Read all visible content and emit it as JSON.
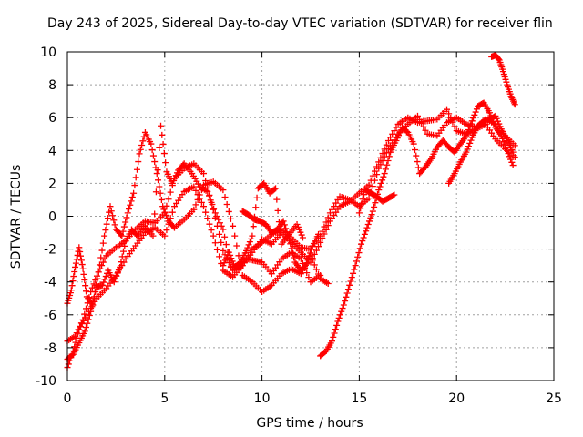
{
  "chart_data": {
    "type": "scatter",
    "title": "Day 243 of 2025, Sidereal Day-to-day VTEC variation (SDTVAR) for receiver flin",
    "xlabel": "GPS time / hours",
    "ylabel": "SDTVAR / TECUs",
    "xlim": [
      0,
      25
    ],
    "ylim": [
      -10,
      10
    ],
    "xticks": [
      "0",
      "5",
      "10",
      "15",
      "20",
      "25"
    ],
    "yticks": [
      "-10",
      "-8",
      "-6",
      "-4",
      "-2",
      "0",
      "2",
      "4",
      "6",
      "8",
      "10"
    ],
    "grid": true,
    "marker": "plus",
    "color": "#ff0000",
    "series": [
      {
        "points": [
          [
            0,
            -9.2
          ],
          [
            0.3,
            -8.2
          ],
          [
            0.6,
            -6.9
          ],
          [
            1.0,
            -6.0
          ],
          [
            1.5,
            -5.0
          ],
          [
            2.0,
            -4.4
          ],
          [
            2.5,
            -3.6
          ],
          [
            3.0,
            -2.6
          ],
          [
            3.5,
            -1.8
          ],
          [
            4.0,
            -1.0
          ],
          [
            4.5,
            -0.7
          ],
          [
            5.0,
            -1.2
          ],
          [
            5.5,
            0.6
          ],
          [
            6.0,
            1.5
          ],
          [
            6.5,
            1.8
          ],
          [
            7.0,
            0.6
          ],
          [
            7.5,
            -1.2
          ],
          [
            8.0,
            -3.3
          ],
          [
            8.5,
            -3.7
          ],
          [
            9.0,
            -3.0
          ],
          [
            9.5,
            -2.2
          ],
          [
            10.0,
            -1.4
          ],
          [
            10.5,
            -1.7
          ],
          [
            11.0,
            -1.0
          ],
          [
            11.5,
            -1.6
          ],
          [
            12.0,
            -2.2
          ],
          [
            12.5,
            -2.8
          ],
          [
            13.0,
            -1.6
          ],
          [
            13.5,
            -0.3
          ],
          [
            14.0,
            0.6
          ],
          [
            14.5,
            0.9
          ],
          [
            15.0,
            1.4
          ],
          [
            15.5,
            1.9
          ],
          [
            16.0,
            3.3
          ],
          [
            16.5,
            4.6
          ],
          [
            17.0,
            5.6
          ],
          [
            17.5,
            6.0
          ],
          [
            18.0,
            5.7
          ],
          [
            18.5,
            5.8
          ],
          [
            19.0,
            5.9
          ],
          [
            19.5,
            6.5
          ],
          [
            20.0,
            5.2
          ],
          [
            20.5,
            5.0
          ],
          [
            21.0,
            5.3
          ],
          [
            21.5,
            5.6
          ],
          [
            22.0,
            4.7
          ],
          [
            22.5,
            4.1
          ],
          [
            23.0,
            3.6
          ]
        ]
      },
      {
        "points": [
          [
            0,
            -7.6
          ],
          [
            0.4,
            -7.3
          ],
          [
            0.8,
            -6.3
          ],
          [
            1.2,
            -4.6
          ],
          [
            1.6,
            -3.4
          ],
          [
            2.0,
            -2.4
          ],
          [
            2.5,
            -1.9
          ],
          [
            3.0,
            -1.5
          ],
          [
            3.5,
            -0.8
          ],
          [
            4.0,
            -0.3
          ],
          [
            4.5,
            -0.4
          ],
          [
            5.0,
            0.2
          ],
          [
            5.5,
            2.3
          ],
          [
            6.0,
            2.9
          ],
          [
            6.5,
            3.2
          ],
          [
            7.0,
            2.6
          ],
          [
            7.5,
            0.4
          ],
          [
            8.0,
            -2.1
          ],
          [
            8.5,
            -3.3
          ],
          [
            9.0,
            -3.0
          ],
          [
            9.5,
            -2.0
          ],
          [
            10.0,
            -1.6
          ],
          [
            10.5,
            -1.1
          ],
          [
            11.0,
            -0.8
          ],
          [
            11.5,
            -1.3
          ],
          [
            12.0,
            -1.9
          ],
          [
            12.5,
            -2.0
          ],
          [
            13.0,
            -1.2
          ],
          [
            13.5,
            0.2
          ],
          [
            14.0,
            1.2
          ],
          [
            14.5,
            1.0
          ],
          [
            15.0,
            0.6
          ],
          [
            15.5,
            1.1
          ],
          [
            16.0,
            2.9
          ],
          [
            16.5,
            4.1
          ],
          [
            17.0,
            5.0
          ],
          [
            17.5,
            5.6
          ],
          [
            18.0,
            6.1
          ],
          [
            18.5,
            5.0
          ],
          [
            19.0,
            4.9
          ],
          [
            19.5,
            5.7
          ],
          [
            20.0,
            6.0
          ],
          [
            20.5,
            5.6
          ],
          [
            21.0,
            5.4
          ],
          [
            21.5,
            5.9
          ],
          [
            22.0,
            5.6
          ],
          [
            22.5,
            4.9
          ],
          [
            23.0,
            4.3
          ]
        ]
      },
      {
        "points": [
          [
            0,
            -5.3
          ],
          [
            0.2,
            -4.5
          ],
          [
            0.4,
            -3.1
          ],
          [
            0.6,
            -1.9
          ],
          [
            0.8,
            -3.2
          ],
          [
            1.0,
            -4.9
          ],
          [
            1.3,
            -5.4
          ],
          [
            1.6,
            -3.4
          ],
          [
            1.9,
            -1.2
          ],
          [
            2.2,
            0.6
          ],
          [
            2.5,
            -0.8
          ],
          [
            2.8,
            -1.2
          ],
          [
            3.1,
            0.2
          ],
          [
            3.4,
            1.4
          ],
          [
            3.7,
            3.8
          ],
          [
            4.0,
            5.1
          ],
          [
            4.3,
            4.4
          ],
          [
            4.6,
            2.6
          ],
          [
            4.9,
            0.6
          ],
          [
            5.2,
            -0.3
          ],
          [
            5.5,
            -0.7
          ],
          [
            6.0,
            -0.2
          ],
          [
            6.5,
            0.4
          ],
          [
            7.0,
            1.9
          ],
          [
            7.5,
            2.1
          ],
          [
            8.0,
            1.6
          ],
          [
            8.5,
            -0.6
          ],
          [
            9.0,
            -3.6
          ],
          [
            9.5,
            -4.0
          ],
          [
            10.0,
            -4.6
          ],
          [
            10.5,
            -4.2
          ],
          [
            11.0,
            -3.5
          ],
          [
            11.5,
            -3.2
          ],
          [
            12.0,
            -3.5
          ],
          [
            12.5,
            -2.4
          ],
          [
            13.0,
            -3.8
          ],
          [
            13.4,
            -4.1
          ]
        ]
      },
      {
        "points": [
          [
            0,
            -8.7
          ],
          [
            0.3,
            -8.4
          ],
          [
            0.6,
            -7.7
          ],
          [
            0.9,
            -7.0
          ],
          [
            1.2,
            -5.8
          ],
          [
            1.5,
            -4.3
          ],
          [
            1.8,
            -4.2
          ],
          [
            2.1,
            -3.3
          ],
          [
            2.4,
            -4.0
          ],
          [
            2.7,
            -3.1
          ],
          [
            3.0,
            -1.5
          ],
          [
            3.3,
            -0.8
          ],
          [
            3.6,
            -1.2
          ],
          [
            4.0,
            -0.6
          ],
          [
            4.4,
            -1.2
          ],
          [
            4.8,
            5.5
          ],
          [
            5.1,
            2.7
          ],
          [
            5.4,
            2.0
          ],
          [
            5.7,
            2.8
          ],
          [
            6.0,
            3.2
          ],
          [
            6.4,
            2.6
          ],
          [
            6.8,
            1.8
          ],
          [
            7.2,
            1.5
          ],
          [
            7.6,
            0.2
          ],
          [
            8.0,
            -0.8
          ],
          [
            8.4,
            -3.1
          ],
          [
            8.8,
            -3.0
          ],
          [
            9.2,
            -2.6
          ],
          [
            9.6,
            -2.7
          ],
          [
            10.0,
            -2.8
          ],
          [
            10.5,
            -3.5
          ],
          [
            11.0,
            -2.6
          ],
          [
            11.5,
            -2.2
          ],
          [
            12.0,
            -2.6
          ],
          [
            12.5,
            -4.0
          ],
          [
            13.0,
            -3.6
          ]
        ]
      },
      {
        "points": [
          [
            13.0,
            -8.5
          ],
          [
            13.3,
            -8.2
          ],
          [
            13.6,
            -7.6
          ],
          [
            13.9,
            -6.4
          ],
          [
            14.2,
            -5.4
          ],
          [
            14.5,
            -4.2
          ],
          [
            14.8,
            -3.0
          ],
          [
            15.1,
            -1.7
          ],
          [
            15.4,
            -0.7
          ],
          [
            15.7,
            0.3
          ],
          [
            16.0,
            1.6
          ],
          [
            16.3,
            2.6
          ],
          [
            16.6,
            3.9
          ],
          [
            16.9,
            4.6
          ],
          [
            17.2,
            5.4
          ],
          [
            17.5,
            5.1
          ],
          [
            17.8,
            4.4
          ],
          [
            18.1,
            2.6
          ],
          [
            18.4,
            3.0
          ],
          [
            18.7,
            3.5
          ],
          [
            19.0,
            4.2
          ],
          [
            19.3,
            4.6
          ],
          [
            19.6,
            4.2
          ],
          [
            19.9,
            3.9
          ],
          [
            20.2,
            4.4
          ],
          [
            20.5,
            4.9
          ],
          [
            20.8,
            5.8
          ],
          [
            21.1,
            6.7
          ],
          [
            21.4,
            6.9
          ],
          [
            21.7,
            6.3
          ],
          [
            22.0,
            5.4
          ],
          [
            22.3,
            4.9
          ],
          [
            22.6,
            4.0
          ],
          [
            22.9,
            3.1
          ]
        ]
      },
      {
        "points": [
          [
            19.6,
            2.0
          ],
          [
            19.9,
            2.6
          ],
          [
            20.2,
            3.3
          ],
          [
            20.5,
            3.9
          ],
          [
            20.8,
            4.8
          ],
          [
            21.1,
            5.5
          ],
          [
            21.4,
            5.8
          ],
          [
            21.7,
            5.9
          ],
          [
            22.0,
            6.1
          ],
          [
            22.3,
            5.3
          ],
          [
            22.6,
            4.6
          ],
          [
            22.9,
            3.9
          ]
        ]
      },
      {
        "points": [
          [
            21.8,
            9.7
          ],
          [
            22.0,
            9.8
          ],
          [
            22.2,
            9.5
          ],
          [
            22.4,
            8.8
          ],
          [
            22.6,
            8.0
          ],
          [
            22.8,
            7.3
          ],
          [
            23.0,
            6.8
          ]
        ]
      },
      {
        "points": [
          [
            9.0,
            0.3
          ],
          [
            9.3,
            0.1
          ],
          [
            9.6,
            -0.2
          ],
          [
            9.9,
            -0.3
          ],
          [
            10.2,
            -0.5
          ],
          [
            10.5,
            -1.0
          ],
          [
            10.8,
            -0.8
          ],
          [
            11.1,
            -0.3
          ],
          [
            11.4,
            -1.4
          ],
          [
            11.7,
            -2.8
          ],
          [
            12.0,
            -3.3
          ],
          [
            12.3,
            -2.9
          ],
          [
            12.6,
            -1.8
          ],
          [
            12.9,
            -1.1
          ]
        ]
      },
      {
        "points": [
          [
            8.0,
            -3.0
          ],
          [
            8.3,
            -2.2
          ],
          [
            8.6,
            -3.1
          ],
          [
            8.9,
            -2.8
          ],
          [
            9.2,
            -2.1
          ],
          [
            9.5,
            -1.2
          ],
          [
            9.8,
            1.7
          ],
          [
            10.1,
            2.0
          ],
          [
            10.4,
            1.4
          ],
          [
            10.7,
            1.7
          ],
          [
            11.0,
            -1.7
          ],
          [
            11.4,
            -1.1
          ],
          [
            11.8,
            -0.5
          ],
          [
            12.1,
            -1.3
          ]
        ]
      },
      {
        "points": [
          [
            15.0,
            0.2
          ],
          [
            15.3,
            1.6
          ],
          [
            15.6,
            1.4
          ],
          [
            15.9,
            1.2
          ],
          [
            16.2,
            0.9
          ],
          [
            16.5,
            1.1
          ],
          [
            16.8,
            1.3
          ]
        ]
      }
    ]
  }
}
